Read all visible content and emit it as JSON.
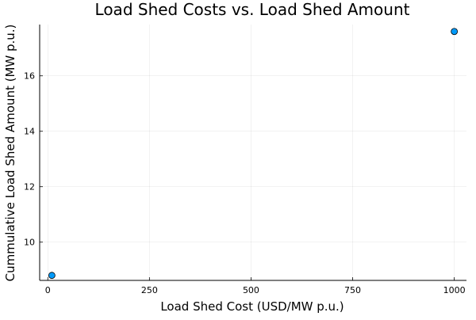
{
  "chart_data": {
    "type": "scatter",
    "title": "Load Shed Costs vs. Load Shed Amount",
    "xlabel": "Load Shed Cost (USD/MW p.u.)",
    "ylabel": "Cummulative Load Shed Amount (MW p.u.)",
    "xlim": [
      -20,
      1030
    ],
    "ylim": [
      8.62,
      17.85
    ],
    "xticks": [
      0,
      250,
      500,
      750,
      1000
    ],
    "xtick_labels": [
      "0",
      "250",
      "500",
      "750",
      "1000"
    ],
    "yticks": [
      10,
      12,
      14,
      16
    ],
    "ytick_labels": [
      "10",
      "12",
      "14",
      "16"
    ],
    "grid": true,
    "legend": "none",
    "series": [
      {
        "points": [
          {
            "x": 10,
            "y": 8.8
          },
          {
            "x": 1000,
            "y": 17.6
          }
        ],
        "color": "#009af9"
      }
    ]
  }
}
